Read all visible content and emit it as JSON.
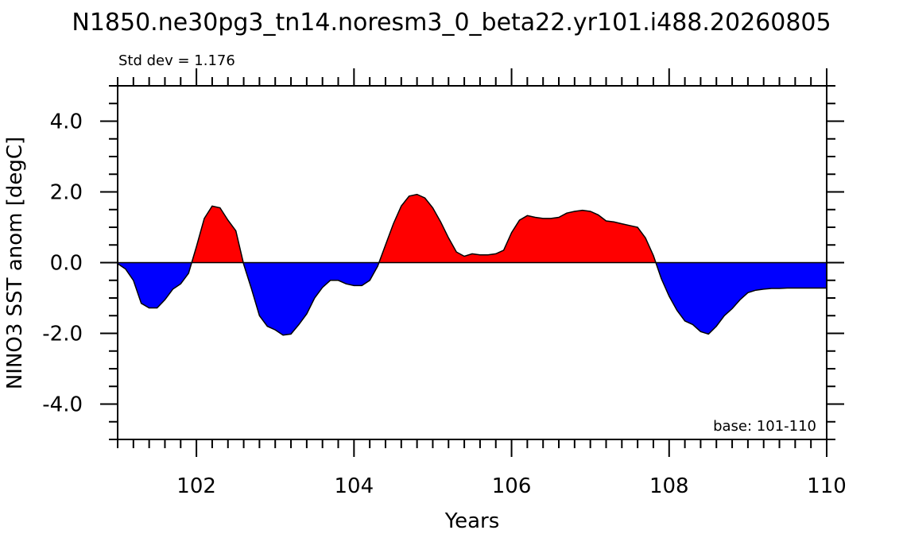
{
  "chart_data": {
    "type": "area",
    "title": "N1850.ne30pg3_tn14.noresm3_0_beta22.yr101.i488.20260805",
    "subtitle_left": "Std dev = 1.176",
    "annotation": "base: 101-110",
    "xlabel": "Years",
    "ylabel": "NINO3 SST anom [degC]",
    "xlim": [
      101,
      110
    ],
    "ylim": [
      -5,
      5
    ],
    "x_ticks": [
      102,
      104,
      106,
      108,
      110
    ],
    "x_tick_labels": [
      "102",
      "104",
      "106",
      "108",
      "110"
    ],
    "y_ticks": [
      -4,
      -2,
      0,
      2,
      4
    ],
    "y_tick_labels": [
      "-4.0",
      "-2.0",
      "0.0",
      "2.0",
      "4.0"
    ],
    "positive_color": "#ff0000",
    "negative_color": "#0000ff",
    "x": [
      101.0,
      101.1,
      101.2,
      101.3,
      101.4,
      101.5,
      101.6,
      101.7,
      101.8,
      101.9,
      102.0,
      102.1,
      102.2,
      102.3,
      102.4,
      102.5,
      102.6,
      102.7,
      102.8,
      102.9,
      103.0,
      103.1,
      103.2,
      103.3,
      103.4,
      103.5,
      103.6,
      103.7,
      103.8,
      103.9,
      104.0,
      104.1,
      104.2,
      104.3,
      104.4,
      104.5,
      104.6,
      104.7,
      104.8,
      104.9,
      105.0,
      105.1,
      105.2,
      105.3,
      105.4,
      105.5,
      105.6,
      105.7,
      105.8,
      105.9,
      106.0,
      106.1,
      106.2,
      106.3,
      106.4,
      106.5,
      106.6,
      106.7,
      106.8,
      106.9,
      107.0,
      107.1,
      107.2,
      107.3,
      107.4,
      107.5,
      107.6,
      107.7,
      107.8,
      107.9,
      108.0,
      108.1,
      108.2,
      108.3,
      108.4,
      108.5,
      108.6,
      108.7,
      108.8,
      108.9,
      109.0,
      109.1,
      109.2,
      109.3,
      109.4,
      109.5,
      109.6,
      109.7,
      109.8,
      109.9,
      110.0
    ],
    "values": [
      -0.03,
      -0.18,
      -0.5,
      -1.15,
      -1.28,
      -1.28,
      -1.05,
      -0.75,
      -0.6,
      -0.3,
      0.45,
      1.25,
      1.6,
      1.55,
      1.2,
      0.9,
      -0.05,
      -0.75,
      -1.5,
      -1.8,
      -1.9,
      -2.05,
      -2.02,
      -1.75,
      -1.45,
      -1.0,
      -0.7,
      -0.5,
      -0.5,
      -0.6,
      -0.65,
      -0.65,
      -0.5,
      -0.1,
      0.5,
      1.1,
      1.6,
      1.88,
      1.93,
      1.83,
      1.55,
      1.15,
      0.7,
      0.3,
      0.18,
      0.25,
      0.22,
      0.22,
      0.25,
      0.35,
      0.85,
      1.2,
      1.33,
      1.28,
      1.25,
      1.25,
      1.28,
      1.4,
      1.45,
      1.48,
      1.45,
      1.35,
      1.18,
      1.15,
      1.1,
      1.05,
      1.0,
      0.7,
      0.2,
      -0.45,
      -0.95,
      -1.35,
      -1.65,
      -1.75,
      -1.95,
      -2.02,
      -1.8,
      -1.5,
      -1.3,
      -1.05,
      -0.85,
      -0.78,
      -0.75,
      -0.73,
      -0.73,
      -0.72,
      -0.72,
      -0.72,
      -0.72,
      -0.72,
      -0.72
    ]
  }
}
